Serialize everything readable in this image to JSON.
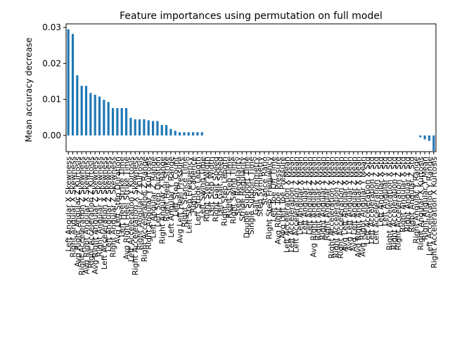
{
  "chart_data": {
    "type": "bar",
    "title": "Feature importances using permutation on full model",
    "xlabel": "",
    "ylabel": "Mean accuracy decrease",
    "ylim": [
      -0.0045,
      0.031
    ],
    "yticks": [
      0.0,
      0.01,
      0.02,
      0.03
    ],
    "ytick_labels": [
      "0.00",
      "0.01",
      "0.02",
      "0.03"
    ],
    "bar_color": "#1f77b4",
    "grid": false,
    "categories": [
      "Left Angular X Skewness",
      "Right Angular X Skewness",
      "Avg Right Angular Z Kurtosis",
      "Right Acceleration Z Skewness",
      "Avg Right Angular X Skewness",
      "Right Acceleration Z Kurtosis",
      "Avg Right Angular Z Skewness",
      "Right Angular Y Skewness",
      "Left Acceleration X Skewness",
      "Left Angular Z Skewness",
      "Right Angular Z Skewness",
      "Avg Left Step Duration",
      "Left Heel Strike Time",
      "Avg Right Heel Strike Time",
      "Left Acceleration Y Kurtosis",
      "Right Acceleration X Skewness",
      "Right Angular Z Kurtosis",
      "Right Acceleration Z Range",
      "Right Angular Y Kurtosis",
      "Left Angular Z Range",
      "Left Step Duration",
      "Right Angular X Range",
      "Right Heel Strike",
      "Left Angular Y Range",
      "Left Step Count",
      "Avg Left Heel Pressure",
      "Right Stance Time",
      "Left Step Frequency",
      "Right Cadence",
      "Left Stride Length",
      "Left Swing Time",
      "Right Step Width",
      "Left Step Width",
      "Right Gait Speed",
      "Left Gait Speed",
      "Right Step Length",
      "Right Step Time",
      "Right Swing Time",
      "Step Regularity",
      "Stride Regularity",
      "Double Support Time",
      "Single Support Time",
      "Gait Symmetry",
      "Step Symmetry",
      "Stance Ratio",
      "Right Step Frequency",
      "Left Toe Off Time",
      "Avg Right Toe Pressure",
      "Avg Left Toe Pressure",
      "Left Acceleration X Mean",
      "Left Acceleration Y Mean",
      "Left Acceleration Z Mean",
      "Left Angular X Mean",
      "Left Angular Y Mean",
      "Left Angular Z Mean",
      "Avg Right Angular Z Mean",
      "Right Angular X Mean",
      "Right Angular Y Mean",
      "Right Angular Z Mean",
      "Right Acceleration X Mean",
      "Right Acceleration Y Mean",
      "Right Acceleration Z Mean",
      "Avg Left Angular X Mean",
      "Avg Left Angular Y Mean",
      "Avg Left Angular Z Mean",
      "Avg Right Angular X Mean",
      "Avg Right Angular Y Mean",
      "Left Acceleration X Std",
      "Left Acceleration Y Std",
      "Left Acceleration Z Std",
      "Left Angular X Std",
      "Left Angular Y Std",
      "Right Acceleration X Std",
      "Right Acceleration Y Std",
      "Right Acceleration Z Std",
      "Right Angular X Std",
      "Right Angular Y Std",
      "Right Angular Z Std",
      "Right Angular Y Range",
      "Right Angular X Kurtosis",
      "Right Angular Y Mean",
      "Left Acceleration Y Range",
      "Right Acceleration X Kurtosis"
    ],
    "values": [
      0.0295,
      0.0282,
      0.0167,
      0.0138,
      0.0138,
      0.0118,
      0.0113,
      0.0108,
      0.0099,
      0.0093,
      0.0076,
      0.0076,
      0.0076,
      0.0076,
      0.0049,
      0.0045,
      0.0045,
      0.0045,
      0.0042,
      0.004,
      0.004,
      0.0029,
      0.0029,
      0.0018,
      0.0013,
      0.0009,
      0.0009,
      0.0009,
      0.0009,
      0.0009,
      0.0009,
      0,
      0,
      0,
      0,
      0,
      0,
      0,
      0,
      0,
      0,
      0,
      0,
      0,
      0,
      0,
      0,
      0,
      0,
      0,
      0,
      0,
      0,
      0,
      0,
      0,
      0,
      0,
      0,
      0,
      0,
      0,
      0,
      0,
      0,
      0,
      0,
      0,
      0,
      0,
      0,
      0,
      0,
      0,
      0,
      0,
      0,
      0,
      0,
      -0.0005,
      -0.0011,
      -0.0015,
      -0.0043
    ]
  }
}
